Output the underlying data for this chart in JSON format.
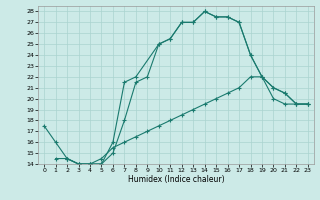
{
  "title": "",
  "xlabel": "Humidex (Indice chaleur)",
  "bg_color": "#cceae7",
  "grid_color": "#aad4d0",
  "line_color": "#1a7a6e",
  "xlim": [
    -0.5,
    23.5
  ],
  "ylim": [
    14,
    28.5
  ],
  "xticks": [
    0,
    1,
    2,
    3,
    4,
    5,
    6,
    7,
    8,
    9,
    10,
    11,
    12,
    13,
    14,
    15,
    16,
    17,
    18,
    19,
    20,
    21,
    22,
    23
  ],
  "yticks": [
    14,
    15,
    16,
    17,
    18,
    19,
    20,
    21,
    22,
    23,
    24,
    25,
    26,
    27,
    28
  ],
  "line1_x": [
    0,
    1,
    2,
    3,
    4,
    5,
    6,
    7,
    8,
    9,
    10,
    11,
    12,
    13,
    14,
    15,
    16,
    17,
    18,
    19,
    20,
    21,
    22,
    23
  ],
  "line1_y": [
    17.5,
    16,
    14.5,
    14,
    14,
    14,
    15,
    18,
    21.5,
    22,
    25,
    25.5,
    27,
    27,
    28,
    27.5,
    27.5,
    27,
    24,
    22,
    21,
    20.5,
    19.5,
    19.5
  ],
  "line2_x": [
    2,
    3,
    4,
    5,
    6,
    7,
    8,
    10,
    11,
    12,
    13,
    14,
    15,
    16,
    17,
    18,
    19,
    20,
    21,
    22,
    23
  ],
  "line2_y": [
    14.5,
    14,
    14,
    14,
    16,
    21.5,
    22,
    25,
    25.5,
    27,
    27,
    28,
    27.5,
    27.5,
    27,
    24,
    22,
    21,
    20.5,
    19.5,
    19.5
  ],
  "line3_x": [
    1,
    2,
    3,
    4,
    5,
    6,
    7,
    8,
    9,
    10,
    11,
    12,
    13,
    14,
    15,
    16,
    17,
    18,
    19,
    20,
    21,
    22,
    23
  ],
  "line3_y": [
    14.5,
    14.5,
    14,
    14,
    14.5,
    15.5,
    16,
    16.5,
    17,
    17.5,
    18,
    18.5,
    19,
    19.5,
    20,
    20.5,
    21,
    22,
    22,
    20,
    19.5,
    19.5,
    19.5
  ]
}
